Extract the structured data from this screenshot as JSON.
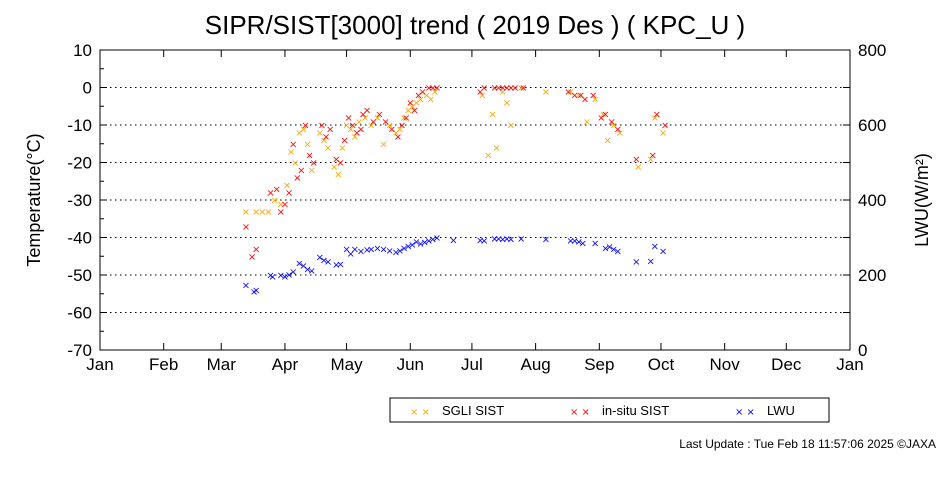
{
  "chart_data": {
    "type": "scatter",
    "title": "SIPR/SIST[3000] trend ( 2019 Des ) ( KPC_U )",
    "ylabel": "Temperature(°C)",
    "y2label": "LWU(W/m²)",
    "xlabel": "",
    "ylim": [
      -70,
      10
    ],
    "y2lim": [
      0,
      800
    ],
    "yticks": [
      -70,
      -60,
      -50,
      -40,
      -30,
      -20,
      -10,
      0,
      10
    ],
    "y2ticks": [
      0,
      200,
      400,
      600,
      800
    ],
    "xlim": [
      "2019-01-01",
      "2020-01-01"
    ],
    "x_tick_labels": [
      "Jan",
      "Feb",
      "Mar",
      "Apr",
      "May",
      "Jun",
      "Jul",
      "Aug",
      "Sep",
      "Oct",
      "Nov",
      "Dec",
      "Jan"
    ],
    "x_tick_dates": [
      "2019-01-01",
      "2019-02-01",
      "2019-03-01",
      "2019-04-01",
      "2019-05-01",
      "2019-06-01",
      "2019-07-01",
      "2019-08-01",
      "2019-09-01",
      "2019-10-01",
      "2019-11-01",
      "2019-12-01",
      "2020-01-01"
    ],
    "grid": "dotted horizontal at major y ticks",
    "legend_position": "bottom-right",
    "marker": "×",
    "series": [
      {
        "name": "SGLI SIST",
        "color": "#ffa500",
        "axis": "left",
        "points": [
          [
            "2019-03-13",
            -33
          ],
          [
            "2019-03-18",
            -33
          ],
          [
            "2019-03-21",
            -33
          ],
          [
            "2019-03-24",
            -33
          ],
          [
            "2019-03-27",
            -30
          ],
          [
            "2019-03-30",
            -31
          ],
          [
            "2019-04-02",
            -26
          ],
          [
            "2019-04-04",
            -17
          ],
          [
            "2019-04-06",
            -20
          ],
          [
            "2019-04-08",
            -12
          ],
          [
            "2019-04-10",
            -11
          ],
          [
            "2019-04-12",
            -15
          ],
          [
            "2019-04-14",
            -22
          ],
          [
            "2019-04-18",
            -12
          ],
          [
            "2019-04-20",
            -14
          ],
          [
            "2019-04-22",
            -16
          ],
          [
            "2019-04-25",
            -21
          ],
          [
            "2019-04-27",
            -23
          ],
          [
            "2019-04-29",
            -16
          ],
          [
            "2019-05-01",
            -10
          ],
          [
            "2019-05-03",
            -11
          ],
          [
            "2019-05-05",
            -13
          ],
          [
            "2019-05-07",
            -9
          ],
          [
            "2019-05-10",
            -8
          ],
          [
            "2019-05-13",
            -10
          ],
          [
            "2019-05-16",
            -8
          ],
          [
            "2019-05-19",
            -15
          ],
          [
            "2019-05-22",
            -10
          ],
          [
            "2019-05-25",
            -12
          ],
          [
            "2019-05-27",
            -11
          ],
          [
            "2019-05-29",
            -8
          ],
          [
            "2019-05-31",
            -6
          ],
          [
            "2019-06-02",
            -5
          ],
          [
            "2019-06-04",
            -4
          ],
          [
            "2019-06-06",
            -3
          ],
          [
            "2019-06-09",
            -2
          ],
          [
            "2019-06-11",
            -3
          ],
          [
            "2019-06-13",
            -1
          ],
          [
            "2019-07-06",
            -2
          ],
          [
            "2019-07-09",
            -18
          ],
          [
            "2019-07-11",
            -7
          ],
          [
            "2019-07-13",
            -16
          ],
          [
            "2019-07-16",
            -1
          ],
          [
            "2019-07-18",
            -4
          ],
          [
            "2019-07-20",
            -10
          ],
          [
            "2019-07-25",
            0
          ],
          [
            "2019-08-06",
            -1
          ],
          [
            "2019-08-18",
            -1
          ],
          [
            "2019-08-22",
            -2
          ],
          [
            "2019-08-26",
            -9
          ],
          [
            "2019-08-30",
            -3
          ],
          [
            "2019-09-03",
            -7
          ],
          [
            "2019-09-05",
            -14
          ],
          [
            "2019-09-08",
            -10
          ],
          [
            "2019-09-11",
            -12
          ],
          [
            "2019-09-20",
            -21
          ],
          [
            "2019-09-26",
            -19
          ],
          [
            "2019-09-28",
            -8
          ],
          [
            "2019-10-02",
            -12
          ]
        ]
      },
      {
        "name": "in-situ SIST",
        "color": "#ff0000",
        "axis": "left",
        "points": [
          [
            "2019-03-13",
            -37
          ],
          [
            "2019-03-16",
            -45
          ],
          [
            "2019-03-18",
            -43
          ],
          [
            "2019-03-25",
            -28
          ],
          [
            "2019-03-28",
            -27
          ],
          [
            "2019-03-30",
            -33
          ],
          [
            "2019-04-01",
            -31
          ],
          [
            "2019-04-03",
            -28
          ],
          [
            "2019-04-05",
            -15
          ],
          [
            "2019-04-07",
            -24
          ],
          [
            "2019-04-09",
            -22
          ],
          [
            "2019-04-11",
            -10
          ],
          [
            "2019-04-13",
            -18
          ],
          [
            "2019-04-15",
            -20
          ],
          [
            "2019-04-19",
            -10
          ],
          [
            "2019-04-21",
            -13
          ],
          [
            "2019-04-23",
            -11
          ],
          [
            "2019-04-26",
            -19
          ],
          [
            "2019-04-28",
            -20
          ],
          [
            "2019-04-30",
            -14
          ],
          [
            "2019-05-02",
            -8
          ],
          [
            "2019-05-04",
            -10
          ],
          [
            "2019-05-06",
            -12
          ],
          [
            "2019-05-08",
            -11
          ],
          [
            "2019-05-09",
            -7
          ],
          [
            "2019-05-11",
            -6
          ],
          [
            "2019-05-14",
            -9
          ],
          [
            "2019-05-17",
            -7
          ],
          [
            "2019-05-20",
            -9
          ],
          [
            "2019-05-23",
            -11
          ],
          [
            "2019-05-26",
            -13
          ],
          [
            "2019-05-28",
            -10
          ],
          [
            "2019-05-30",
            -8
          ],
          [
            "2019-06-01",
            -4
          ],
          [
            "2019-06-03",
            -6
          ],
          [
            "2019-06-05",
            -2
          ],
          [
            "2019-06-07",
            -1
          ],
          [
            "2019-06-10",
            0
          ],
          [
            "2019-06-12",
            0
          ],
          [
            "2019-06-14",
            0
          ],
          [
            "2019-07-05",
            -1
          ],
          [
            "2019-07-07",
            0
          ],
          [
            "2019-07-12",
            0
          ],
          [
            "2019-07-14",
            0
          ],
          [
            "2019-07-16",
            0
          ],
          [
            "2019-07-18",
            0
          ],
          [
            "2019-07-20",
            0
          ],
          [
            "2019-07-22",
            0
          ],
          [
            "2019-07-26",
            0
          ],
          [
            "2019-08-17",
            -1
          ],
          [
            "2019-08-20",
            -2
          ],
          [
            "2019-08-23",
            -2
          ],
          [
            "2019-08-25",
            -3
          ],
          [
            "2019-08-29",
            -2
          ],
          [
            "2019-09-02",
            -8
          ],
          [
            "2019-09-04",
            -7
          ],
          [
            "2019-09-07",
            -9
          ],
          [
            "2019-09-10",
            -11
          ],
          [
            "2019-09-19",
            -19
          ],
          [
            "2019-09-27",
            -18
          ],
          [
            "2019-09-29",
            -7
          ],
          [
            "2019-10-03",
            -10
          ]
        ]
      },
      {
        "name": "LWU",
        "color": "#0000ff",
        "axis": "right",
        "points": [
          [
            "2019-03-13",
            174
          ],
          [
            "2019-03-17",
            156
          ],
          [
            "2019-03-18",
            160
          ],
          [
            "2019-03-25",
            200
          ],
          [
            "2019-03-26",
            196
          ],
          [
            "2019-03-30",
            200
          ],
          [
            "2019-04-01",
            196
          ],
          [
            "2019-04-03",
            202
          ],
          [
            "2019-04-05",
            210
          ],
          [
            "2019-04-08",
            232
          ],
          [
            "2019-04-10",
            226
          ],
          [
            "2019-04-12",
            216
          ],
          [
            "2019-04-14",
            212
          ],
          [
            "2019-04-18",
            248
          ],
          [
            "2019-04-20",
            240
          ],
          [
            "2019-04-22",
            236
          ],
          [
            "2019-04-26",
            228
          ],
          [
            "2019-04-28",
            230
          ],
          [
            "2019-05-01",
            270
          ],
          [
            "2019-05-03",
            258
          ],
          [
            "2019-05-05",
            270
          ],
          [
            "2019-05-08",
            264
          ],
          [
            "2019-05-11",
            268
          ],
          [
            "2019-05-13",
            270
          ],
          [
            "2019-05-16",
            272
          ],
          [
            "2019-05-19",
            270
          ],
          [
            "2019-05-22",
            266
          ],
          [
            "2019-05-25",
            262
          ],
          [
            "2019-05-27",
            266
          ],
          [
            "2019-05-29",
            272
          ],
          [
            "2019-05-31",
            278
          ],
          [
            "2019-06-02",
            282
          ],
          [
            "2019-06-04",
            290
          ],
          [
            "2019-06-06",
            284
          ],
          [
            "2019-06-08",
            288
          ],
          [
            "2019-06-10",
            292
          ],
          [
            "2019-06-12",
            296
          ],
          [
            "2019-06-14",
            300
          ],
          [
            "2019-06-22",
            294
          ],
          [
            "2019-07-05",
            294
          ],
          [
            "2019-07-07",
            292
          ],
          [
            "2019-07-12",
            298
          ],
          [
            "2019-07-14",
            298
          ],
          [
            "2019-07-16",
            296
          ],
          [
            "2019-07-18",
            298
          ],
          [
            "2019-07-20",
            296
          ],
          [
            "2019-07-25",
            298
          ],
          [
            "2019-08-06",
            296
          ],
          [
            "2019-08-18",
            292
          ],
          [
            "2019-08-20",
            292
          ],
          [
            "2019-08-22",
            290
          ],
          [
            "2019-08-24",
            286
          ],
          [
            "2019-08-30",
            286
          ],
          [
            "2019-09-04",
            272
          ],
          [
            "2019-09-06",
            276
          ],
          [
            "2019-09-08",
            270
          ],
          [
            "2019-09-10",
            264
          ],
          [
            "2019-09-19",
            236
          ],
          [
            "2019-09-26",
            238
          ],
          [
            "2019-09-28",
            278
          ],
          [
            "2019-10-02",
            264
          ]
        ]
      }
    ]
  },
  "footer": {
    "last_update": "Last Update : Tue Feb 18 11:57:06 2025  ©JAXA"
  }
}
